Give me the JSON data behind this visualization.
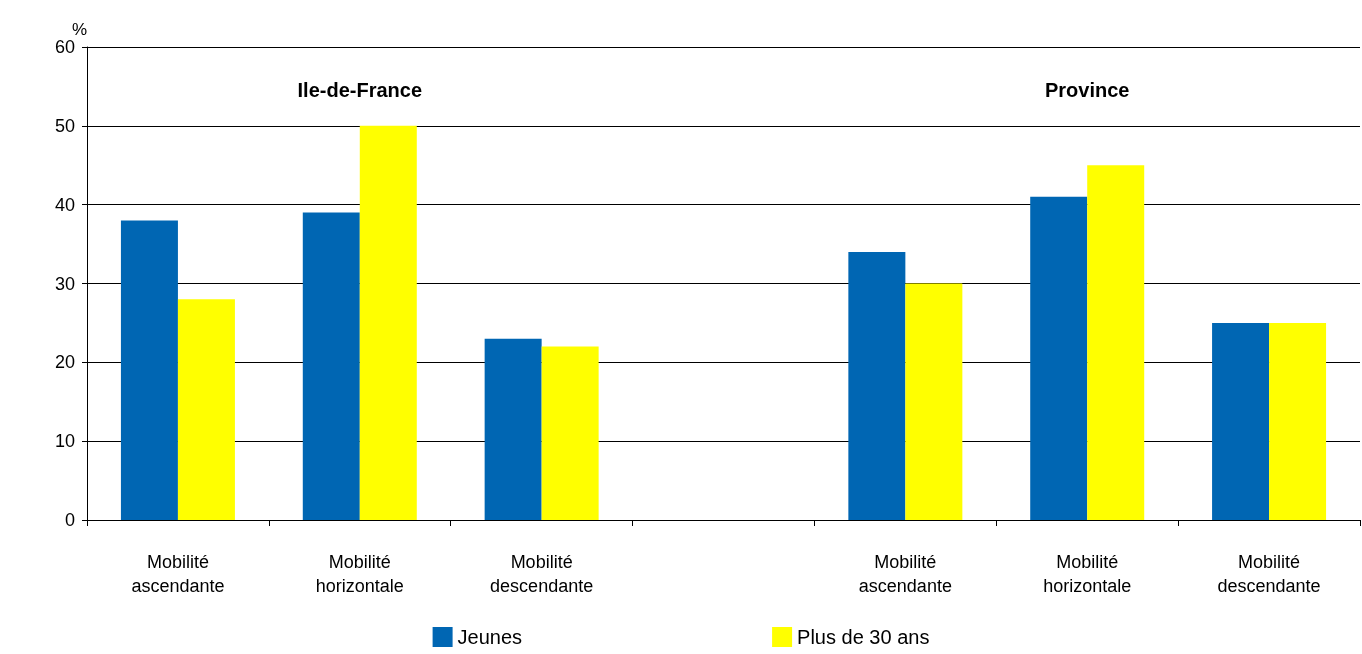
{
  "chart_data": {
    "type": "bar",
    "ylabel": "%",
    "categories": [
      "Mobilité\nascendante",
      "Mobilité\nhorizontale",
      "Mobilité\ndescendante",
      null,
      "Mobilité\nascendante",
      "Mobilité\nhorizontale",
      "Mobilité\ndescendante"
    ],
    "series": [
      {
        "name": "Jeunes",
        "color": "#0066b3",
        "values": [
          38,
          39,
          23,
          null,
          34,
          41,
          25
        ]
      },
      {
        "name": "Plus de 30 ans",
        "color": "#ffff00",
        "values": [
          28,
          50,
          22,
          null,
          30,
          45,
          25
        ]
      }
    ],
    "ylim": [
      0,
      60
    ],
    "yticks": [
      0,
      10,
      20,
      30,
      40,
      50,
      60
    ],
    "grid": "y",
    "legend": "bottom",
    "annotations": [
      "Ile-de-France",
      "Province"
    ]
  }
}
